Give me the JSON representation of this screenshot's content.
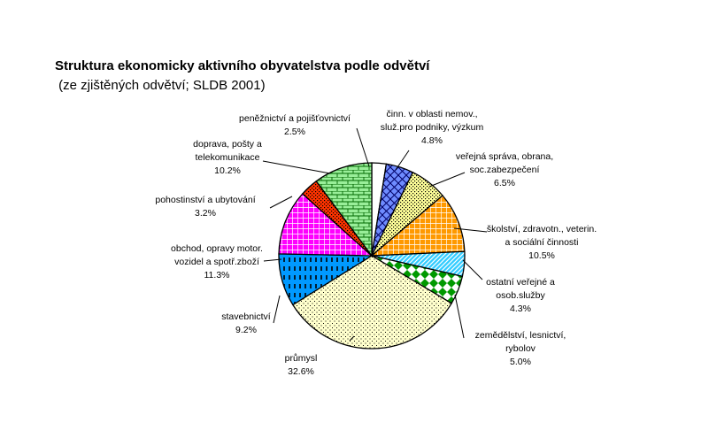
{
  "chart_data": {
    "type": "pie",
    "title": "Struktura ekonomicky aktivního obyvatelstva podle odvětví",
    "subtitle": " (ze zjištěných odvětví; SLDB 2001)",
    "unit": "%",
    "slices": [
      {
        "label_lines": [
          "peněžnictví a pojišťovnictví"
        ],
        "value": 2.5,
        "value_label": "2.5%",
        "color": "#ffffff",
        "pattern": "plain"
      },
      {
        "label_lines": [
          "činn. v oblasti nemov.,",
          "služ.pro podniky, výzkum"
        ],
        "value": 4.8,
        "value_label": "4.8%",
        "color": "#6f8cff",
        "pattern": "diamond-grid"
      },
      {
        "label_lines": [
          "veřejná správa, obrana,",
          "soc.zabezpečení"
        ],
        "value": 6.5,
        "value_label": "6.5%",
        "color": "#ffff99",
        "pattern": "dots"
      },
      {
        "label_lines": [
          "školství, zdravotn., veterin.",
          "a sociální činnosti"
        ],
        "value": 10.5,
        "value_label": "10.5%",
        "color": "#ff9900",
        "pattern": "grid"
      },
      {
        "label_lines": [
          "ostatní veřejné a",
          "osob.služby"
        ],
        "value": 4.3,
        "value_label": "4.3%",
        "color": "#33ccff",
        "pattern": "diagonal"
      },
      {
        "label_lines": [
          "zemědělství, lesnictví,",
          "rybolov"
        ],
        "value": 5.0,
        "value_label": "5.0%",
        "color": "#009900",
        "pattern": "checker"
      },
      {
        "label_lines": [
          "průmysl"
        ],
        "value": 32.6,
        "value_label": "32.6%",
        "color": "#ffffcc",
        "pattern": "sparse-dots"
      },
      {
        "label_lines": [
          "stavebnictví"
        ],
        "value": 9.2,
        "value_label": "9.2%",
        "color": "#0099ff",
        "pattern": "dashes"
      },
      {
        "label_lines": [
          "obchod, opravy motor.",
          "vozidel a spotř.zboží"
        ],
        "value": 11.3,
        "value_label": "11.3%",
        "color": "#ff00ff",
        "pattern": "grid"
      },
      {
        "label_lines": [
          "pohostinství a ubytování"
        ],
        "value": 3.2,
        "value_label": "3.2%",
        "color": "#ff3300",
        "pattern": "dots"
      },
      {
        "label_lines": [
          "doprava, pošty a",
          "telekomunikace"
        ],
        "value": 10.2,
        "value_label": "10.2%",
        "color": "#99ee99",
        "pattern": "bricks"
      }
    ]
  }
}
